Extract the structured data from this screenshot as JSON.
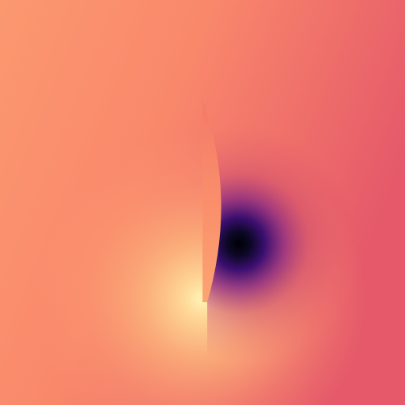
{
  "image": {
    "colormap": "magma",
    "colors": {
      "base_left": "#fb9a70",
      "base_right": "#e8596a",
      "bright_core": "#fff0b0",
      "warm_glow": "#fdbb80",
      "dark_core": "#000004",
      "dark_mid": "#3b0f70",
      "purple_halo": "#8c2981",
      "magenta_edge": "#c63d6d",
      "lens_fill": "#fb8f6b"
    }
  }
}
